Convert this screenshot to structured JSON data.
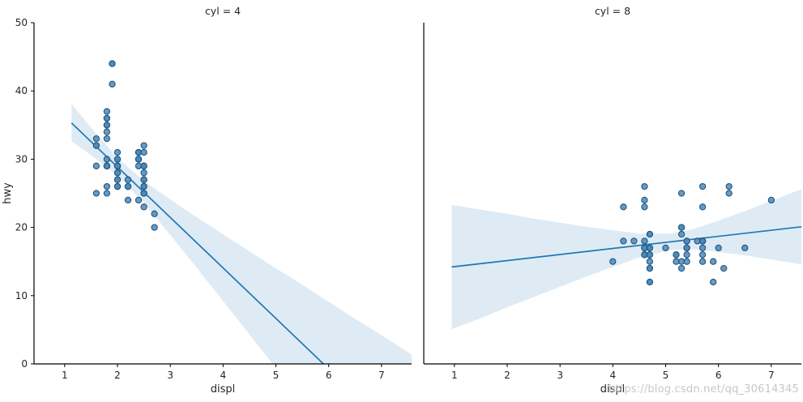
{
  "watermark": "https://blog.csdn.net/qq_30614345",
  "chart_data": {
    "type": "scatter",
    "description": "Faceted scatter plots of highway mpg (hwy) vs engine displacement (displ) with linear regression fits and confidence bands, faceted by cylinder count",
    "xlabel": "displ",
    "ylabel": "hwy",
    "xlim": [
      0.42,
      7.57
    ],
    "ylim": [
      0,
      50
    ],
    "x_ticks": [
      1,
      2,
      3,
      4,
      5,
      6,
      7
    ],
    "y_ticks": [
      0,
      10,
      20,
      30,
      40,
      50
    ],
    "grid": false,
    "legend": false,
    "colors": {
      "point_fill": "#4a89ba",
      "point_edge": "#23557f",
      "line": "#1f77b4",
      "band": "#1f77b4",
      "band_opacity": 0.15,
      "spine": "#000000",
      "tick_label": "#262626"
    },
    "panels": [
      {
        "title": "cyl = 4",
        "show_y_axis": true,
        "points": [
          [
            1.6,
            33
          ],
          [
            1.6,
            32
          ],
          [
            1.6,
            32
          ],
          [
            1.6,
            29
          ],
          [
            1.6,
            25
          ],
          [
            1.8,
            29
          ],
          [
            1.8,
            29
          ],
          [
            1.8,
            26
          ],
          [
            1.8,
            25
          ],
          [
            1.8,
            34
          ],
          [
            1.8,
            36
          ],
          [
            1.8,
            36
          ],
          [
            1.8,
            30
          ],
          [
            1.8,
            33
          ],
          [
            1.8,
            35
          ],
          [
            1.8,
            37
          ],
          [
            1.8,
            35
          ],
          [
            1.8,
            29
          ],
          [
            1.8,
            29
          ],
          [
            1.9,
            44
          ],
          [
            1.9,
            44
          ],
          [
            1.9,
            41
          ],
          [
            2.0,
            31
          ],
          [
            2.0,
            30
          ],
          [
            2.0,
            28
          ],
          [
            2.0,
            27
          ],
          [
            2.0,
            29
          ],
          [
            2.0,
            26
          ],
          [
            2.0,
            27
          ],
          [
            2.0,
            30
          ],
          [
            2.0,
            29
          ],
          [
            2.0,
            29
          ],
          [
            2.0,
            29
          ],
          [
            2.0,
            26
          ],
          [
            2.0,
            29
          ],
          [
            2.0,
            28
          ],
          [
            2.0,
            29
          ],
          [
            2.0,
            26
          ],
          [
            2.2,
            26
          ],
          [
            2.2,
            24
          ],
          [
            2.2,
            26
          ],
          [
            2.2,
            27
          ],
          [
            2.2,
            26
          ],
          [
            2.2,
            26
          ],
          [
            2.4,
            30
          ],
          [
            2.4,
            24
          ],
          [
            2.4,
            31
          ],
          [
            2.4,
            30
          ],
          [
            2.4,
            29
          ],
          [
            2.4,
            30
          ],
          [
            2.4,
            31
          ],
          [
            2.4,
            30
          ],
          [
            2.4,
            31
          ],
          [
            2.5,
            31
          ],
          [
            2.5,
            32
          ],
          [
            2.5,
            26
          ],
          [
            2.5,
            27
          ],
          [
            2.5,
            25
          ],
          [
            2.5,
            27
          ],
          [
            2.5,
            25
          ],
          [
            2.5,
            26
          ],
          [
            2.5,
            23
          ],
          [
            2.5,
            26
          ],
          [
            2.5,
            25
          ],
          [
            2.5,
            27
          ],
          [
            2.5,
            25
          ],
          [
            2.5,
            29
          ],
          [
            2.5,
            29
          ],
          [
            2.5,
            28
          ],
          [
            2.5,
            29
          ],
          [
            2.7,
            20
          ],
          [
            2.7,
            22
          ]
        ],
        "regression_line": [
          [
            1.13,
            35.3
          ],
          [
            5.9,
            0
          ]
        ],
        "ci_upper": [
          [
            1.13,
            38.1
          ],
          [
            1.5,
            34.6
          ],
          [
            2.0,
            30.2
          ],
          [
            2.5,
            26.8
          ],
          [
            3.0,
            24.1
          ],
          [
            3.5,
            21.5
          ],
          [
            4.0,
            19.0
          ],
          [
            4.5,
            16.5
          ],
          [
            5.0,
            14.0
          ],
          [
            5.5,
            11.6
          ],
          [
            6.0,
            9.1
          ],
          [
            6.5,
            6.6
          ],
          [
            7.0,
            4.2
          ],
          [
            7.57,
            1.4
          ]
        ],
        "ci_lower": [
          [
            1.13,
            32.6
          ],
          [
            1.5,
            30.6
          ],
          [
            2.0,
            27.6
          ],
          [
            2.5,
            23.6
          ],
          [
            3.0,
            18.9
          ],
          [
            3.5,
            14.1
          ],
          [
            4.0,
            9.2
          ],
          [
            4.5,
            4.3
          ],
          [
            4.94,
            0
          ],
          [
            7.57,
            0
          ]
        ]
      },
      {
        "title": "cyl = 8",
        "show_y_axis": false,
        "points": [
          [
            4.0,
            15
          ],
          [
            4.2,
            23
          ],
          [
            4.2,
            18
          ],
          [
            4.4,
            18
          ],
          [
            4.6,
            17
          ],
          [
            4.6,
            16
          ],
          [
            4.6,
            16
          ],
          [
            4.6,
            17
          ],
          [
            4.6,
            26
          ],
          [
            4.6,
            23
          ],
          [
            4.6,
            24
          ],
          [
            4.6,
            16
          ],
          [
            4.6,
            18
          ],
          [
            4.7,
            19
          ],
          [
            4.7,
            14
          ],
          [
            4.7,
            17
          ],
          [
            4.7,
            16
          ],
          [
            4.7,
            15
          ],
          [
            4.7,
            12
          ],
          [
            4.7,
            16
          ],
          [
            4.7,
            12
          ],
          [
            4.7,
            17
          ],
          [
            4.7,
            19
          ],
          [
            4.7,
            14
          ],
          [
            4.7,
            17
          ],
          [
            5.0,
            17
          ],
          [
            5.2,
            16
          ],
          [
            5.2,
            15
          ],
          [
            5.2,
            16
          ],
          [
            5.3,
            20
          ],
          [
            5.3,
            15
          ],
          [
            5.3,
            20
          ],
          [
            5.3,
            14
          ],
          [
            5.3,
            19
          ],
          [
            5.3,
            25
          ],
          [
            5.4,
            17
          ],
          [
            5.4,
            18
          ],
          [
            5.4,
            15
          ],
          [
            5.4,
            17
          ],
          [
            5.4,
            17
          ],
          [
            5.4,
            16
          ],
          [
            5.4,
            18
          ],
          [
            5.6,
            18
          ],
          [
            5.7,
            17
          ],
          [
            5.7,
            26
          ],
          [
            5.7,
            23
          ],
          [
            5.7,
            15
          ],
          [
            5.7,
            18
          ],
          [
            5.7,
            16
          ],
          [
            5.7,
            18
          ],
          [
            5.7,
            18
          ],
          [
            5.9,
            15
          ],
          [
            5.9,
            12
          ],
          [
            6.0,
            17
          ],
          [
            6.1,
            14
          ],
          [
            6.2,
            26
          ],
          [
            6.2,
            25
          ],
          [
            6.5,
            17
          ],
          [
            7.0,
            24
          ]
        ],
        "regression_line": [
          [
            0.95,
            14.2
          ],
          [
            7.57,
            20.1
          ]
        ],
        "ci_upper": [
          [
            0.95,
            23.3
          ],
          [
            1.5,
            22.6
          ],
          [
            2.0,
            22.0
          ],
          [
            2.5,
            21.3
          ],
          [
            3.0,
            20.7
          ],
          [
            3.5,
            20.1
          ],
          [
            4.0,
            19.6
          ],
          [
            4.5,
            19.1
          ],
          [
            5.1,
            19.1
          ],
          [
            5.5,
            19.7
          ],
          [
            6.0,
            21.0
          ],
          [
            6.5,
            22.4
          ],
          [
            7.0,
            23.9
          ],
          [
            7.57,
            25.6
          ]
        ],
        "ci_lower": [
          [
            0.95,
            5.1
          ],
          [
            1.5,
            6.7
          ],
          [
            2.0,
            8.3
          ],
          [
            2.5,
            9.8
          ],
          [
            3.0,
            11.3
          ],
          [
            3.5,
            12.8
          ],
          [
            4.0,
            14.2
          ],
          [
            4.5,
            15.6
          ],
          [
            5.1,
            16.7
          ],
          [
            5.5,
            16.8
          ],
          [
            6.0,
            16.4
          ],
          [
            6.5,
            15.9
          ],
          [
            7.0,
            15.3
          ],
          [
            7.57,
            14.6
          ]
        ]
      }
    ]
  }
}
